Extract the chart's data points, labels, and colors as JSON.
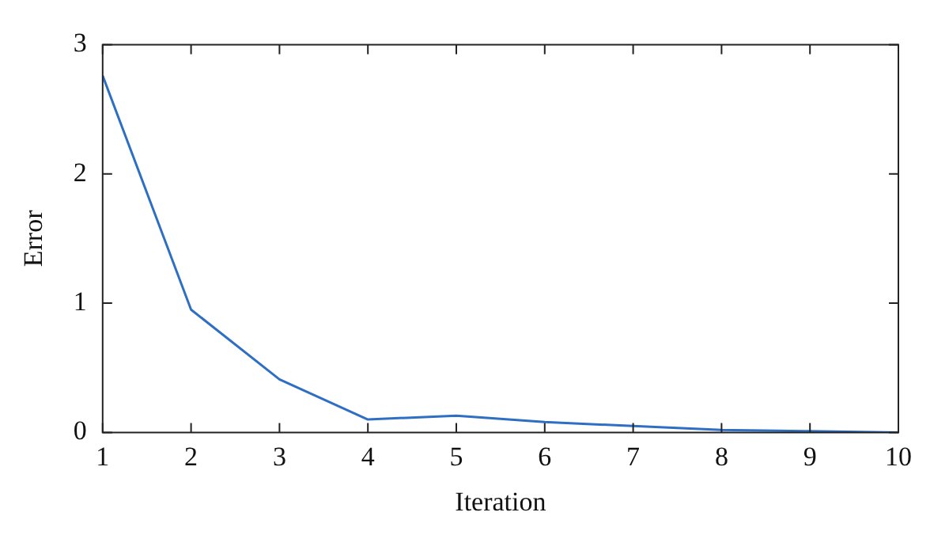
{
  "chart_data": {
    "type": "line",
    "xlabel": "Iteration",
    "ylabel": "Error",
    "x": [
      1,
      2,
      3,
      4,
      5,
      6,
      7,
      8,
      9,
      10
    ],
    "series": [
      {
        "color": "#2e6fc4",
        "values": [
          2.76,
          0.95,
          0.41,
          0.1,
          0.13,
          0.08,
          0.05,
          0.02,
          0.01,
          0
        ]
      }
    ],
    "xlim": [
      1,
      10
    ],
    "xticks": [
      1,
      2,
      3,
      4,
      5,
      6,
      7,
      8,
      9,
      10
    ],
    "ylim": [
      0,
      3
    ],
    "yticks": [
      0,
      1,
      2,
      3
    ],
    "grid": false,
    "legend": false,
    "marker": "none",
    "line_style": "solid"
  }
}
